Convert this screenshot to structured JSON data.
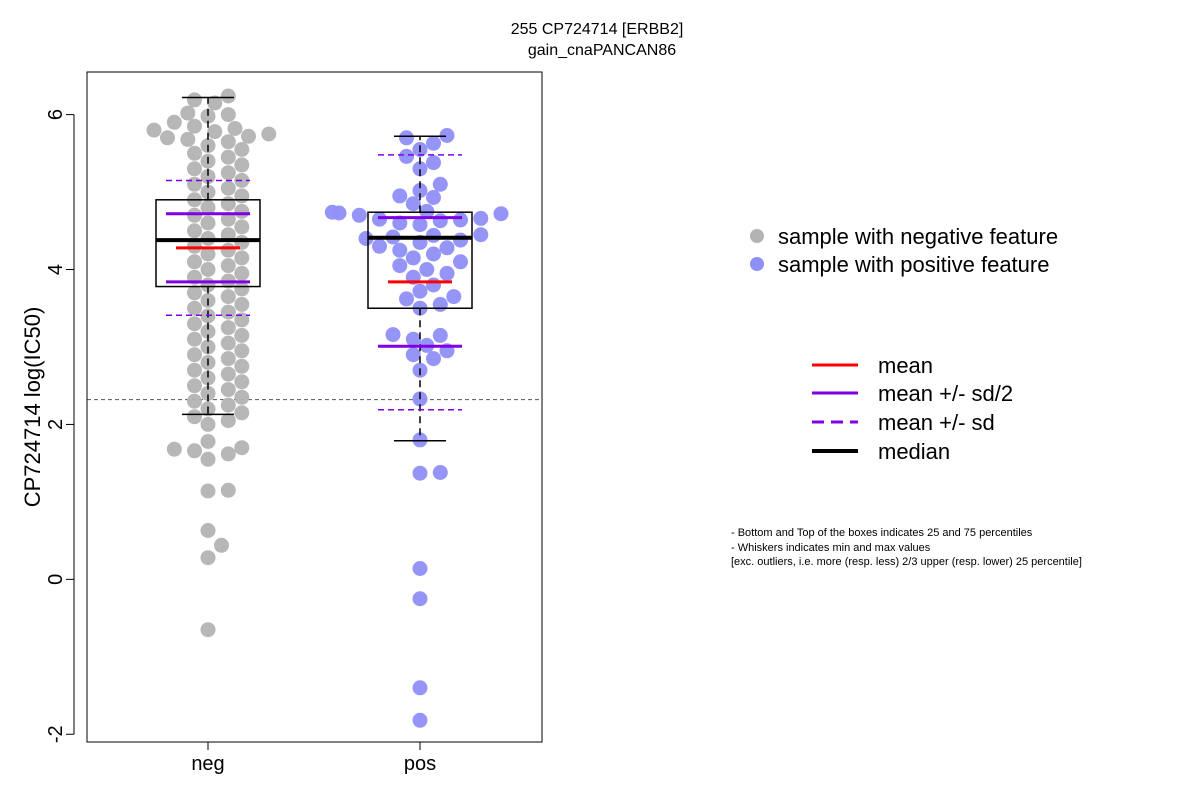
{
  "chart_data": {
    "type": "scatter",
    "title": "255 CP724714 [ERBB2]",
    "subtitle": "gain_cnaPANCAN86",
    "ylabel": "CP724714 log(IC50)",
    "xlabel": "",
    "categories": [
      "neg",
      "pos"
    ],
    "ylim": [
      -2.1,
      6.55
    ],
    "yticks": [
      -2,
      0,
      2,
      4,
      6
    ],
    "reference_line": 2.32,
    "colors": {
      "neg": "#b3b3b3",
      "pos": "#8f8ff8",
      "mean": "#ff0000",
      "sd": "#8000e6",
      "median": "#000000"
    },
    "groups": [
      {
        "name": "neg",
        "box": {
          "q1": 3.78,
          "median": 4.38,
          "q3": 4.9,
          "whisker_low": 2.13,
          "whisker_high": 6.22
        },
        "mean": 4.28,
        "mean_minus_half_sd": 3.84,
        "mean_plus_half_sd": 4.72,
        "mean_minus_sd": 3.41,
        "mean_plus_sd": 5.15,
        "points": [
          6.24,
          6.19,
          6.15,
          6.02,
          6.0,
          5.98,
          5.9,
          5.85,
          5.82,
          5.8,
          5.78,
          5.75,
          5.72,
          5.7,
          5.68,
          5.65,
          5.6,
          5.55,
          5.5,
          5.45,
          5.4,
          5.35,
          5.3,
          5.25,
          5.2,
          5.15,
          5.1,
          5.05,
          5.0,
          4.95,
          4.9,
          4.85,
          4.8,
          4.75,
          4.7,
          4.65,
          4.6,
          4.55,
          4.5,
          4.45,
          4.4,
          4.35,
          4.3,
          4.25,
          4.2,
          4.15,
          4.1,
          4.05,
          4.0,
          3.95,
          3.9,
          3.85,
          3.8,
          3.75,
          3.7,
          3.65,
          3.6,
          3.55,
          3.5,
          3.45,
          3.4,
          3.35,
          3.3,
          3.25,
          3.2,
          3.15,
          3.1,
          3.05,
          3.0,
          2.95,
          2.9,
          2.85,
          2.8,
          2.75,
          2.7,
          2.65,
          2.6,
          2.55,
          2.5,
          2.45,
          2.4,
          2.35,
          2.3,
          2.25,
          2.2,
          2.15,
          2.1,
          2.05,
          2.0,
          1.78,
          1.7,
          1.68,
          1.66,
          1.62,
          1.55,
          1.15,
          1.14,
          0.63,
          0.44,
          0.28,
          -0.65
        ]
      },
      {
        "name": "pos",
        "box": {
          "q1": 3.5,
          "median": 4.41,
          "q3": 4.74,
          "whisker_low": 1.79,
          "whisker_high": 5.72
        },
        "mean": 3.84,
        "mean_minus_half_sd": 3.01,
        "mean_plus_half_sd": 4.67,
        "mean_minus_sd": 2.19,
        "mean_plus_sd": 5.48,
        "points": [
          5.73,
          5.7,
          5.63,
          5.55,
          5.46,
          5.38,
          5.3,
          5.1,
          5.02,
          4.95,
          4.93,
          4.85,
          4.75,
          4.74,
          4.73,
          4.72,
          4.7,
          4.66,
          4.65,
          4.64,
          4.63,
          4.6,
          4.58,
          4.45,
          4.44,
          4.42,
          4.4,
          4.38,
          4.35,
          4.3,
          4.28,
          4.25,
          4.2,
          4.15,
          4.1,
          4.05,
          4.0,
          3.95,
          3.9,
          3.8,
          3.72,
          3.65,
          3.62,
          3.55,
          3.5,
          3.16,
          3.15,
          3.1,
          3.02,
          2.95,
          2.9,
          2.85,
          2.7,
          2.33,
          1.8,
          1.38,
          1.37,
          0.14,
          -0.25,
          -1.4,
          -1.82
        ]
      }
    ]
  },
  "legend": {
    "neg_label": "sample with negative feature",
    "pos_label": "sample with positive feature",
    "mean_label": "mean",
    "half_sd_label": "mean +/- sd/2",
    "sd_label": "mean +/- sd",
    "median_label": "median"
  },
  "notes": {
    "line1": "- Bottom and Top of the boxes indicates 25 and 75 percentiles",
    "line2": "- Whiskers indicates min and max values",
    "line3": "[exc. outliers, i.e. more (resp. less) 2/3 upper (resp. lower) 25 percentile]"
  }
}
